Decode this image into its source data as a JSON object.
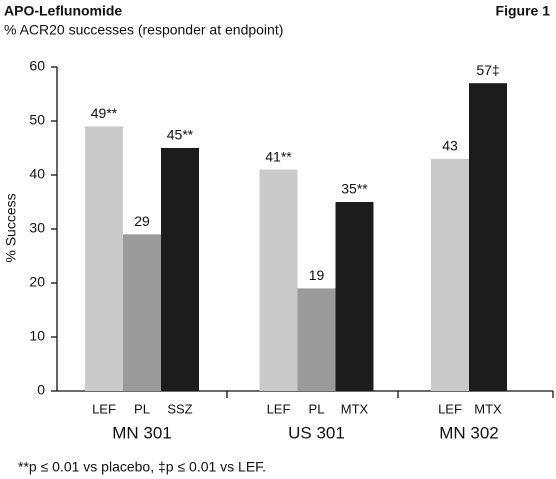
{
  "header": {
    "title": "APO-Leflunomide",
    "figure": "Figure 1",
    "subtitle": "% ACR20 successes (responder at endpoint)"
  },
  "chart_data": {
    "type": "bar",
    "y_label": "% Success",
    "ylim": [
      0,
      60
    ],
    "yticks": [
      0,
      10,
      20,
      30,
      40,
      50,
      60
    ],
    "groups": [
      {
        "name": "MN 301",
        "categories": [
          "LEF",
          "PL",
          "SSZ"
        ],
        "values": [
          49,
          29,
          45
        ],
        "value_labels": [
          "49**",
          "29",
          "45**"
        ],
        "colors": [
          "#c8c9c8",
          "#9a9b9a",
          "#1c1c1c"
        ]
      },
      {
        "name": "US 301",
        "categories": [
          "LEF",
          "PL",
          "MTX"
        ],
        "values": [
          41,
          19,
          35
        ],
        "value_labels": [
          "41**",
          "19",
          "35**"
        ],
        "colors": [
          "#c8c9c8",
          "#9a9b9a",
          "#1c1c1c"
        ]
      },
      {
        "name": "MN 302",
        "categories": [
          "LEF",
          "MTX"
        ],
        "values": [
          43,
          57
        ],
        "value_labels": [
          "43",
          "57‡"
        ],
        "colors": [
          "#c8c9c8",
          "#1c1c1c"
        ]
      }
    ],
    "footnote": "**p ≤ 0.01 vs placebo, ‡p ≤ 0.01 vs LEF."
  }
}
